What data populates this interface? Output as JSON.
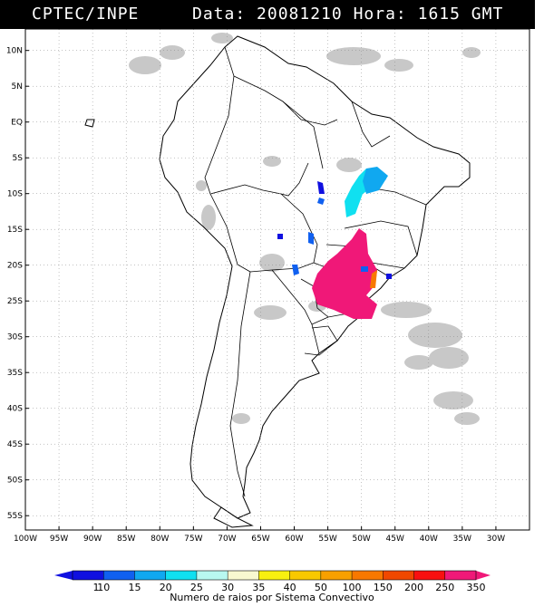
{
  "header": {
    "source": "CPTEC/INPE",
    "date_label": "Data:",
    "date_value": "20081210",
    "time_label": "Hora:",
    "time_value": "1615 GMT"
  },
  "map": {
    "lon_range": [
      -100,
      -25
    ],
    "lat_range": [
      -57,
      13
    ],
    "lat_ticks": [
      {
        "value": 10,
        "label": "10N"
      },
      {
        "value": 5,
        "label": "5N"
      },
      {
        "value": 0,
        "label": "EQ"
      },
      {
        "value": -5,
        "label": "5S"
      },
      {
        "value": -10,
        "label": "10S"
      },
      {
        "value": -15,
        "label": "15S"
      },
      {
        "value": -20,
        "label": "20S"
      },
      {
        "value": -25,
        "label": "25S"
      },
      {
        "value": -30,
        "label": "30S"
      },
      {
        "value": -35,
        "label": "35S"
      },
      {
        "value": -40,
        "label": "40S"
      },
      {
        "value": -45,
        "label": "45S"
      },
      {
        "value": -50,
        "label": "50S"
      },
      {
        "value": -55,
        "label": "55S"
      }
    ],
    "lon_ticks": [
      {
        "value": -100,
        "label": "100W"
      },
      {
        "value": -95,
        "label": "95W"
      },
      {
        "value": -90,
        "label": "90W"
      },
      {
        "value": -85,
        "label": "85W"
      },
      {
        "value": -80,
        "label": "80W"
      },
      {
        "value": -75,
        "label": "75W"
      },
      {
        "value": -70,
        "label": "70W"
      },
      {
        "value": -65,
        "label": "65W"
      },
      {
        "value": -60,
        "label": "60W"
      },
      {
        "value": -55,
        "label": "55W"
      },
      {
        "value": -50,
        "label": "50W"
      },
      {
        "value": -45,
        "label": "45W"
      },
      {
        "value": -40,
        "label": "40W"
      },
      {
        "value": -35,
        "label": "35W"
      },
      {
        "value": -30,
        "label": "30W"
      }
    ],
    "grid": "dotted",
    "cloud_color": "#c8c8c8",
    "coast_color": "#000000"
  },
  "colorbar": {
    "title": "Numero de raios por Sistema Convectivo",
    "ticks": [
      "1",
      "10",
      "15",
      "20",
      "25",
      "30",
      "35",
      "40",
      "50",
      "100",
      "150",
      "200",
      "250",
      "350"
    ],
    "colors": [
      "#1010e0",
      "#1060f0",
      "#10a8f0",
      "#10e0f0",
      "#b8f8f0",
      "#f8f8d0",
      "#f8f010",
      "#f8c800",
      "#f8a000",
      "#f87800",
      "#f04800",
      "#f81010",
      "#f01878"
    ]
  }
}
